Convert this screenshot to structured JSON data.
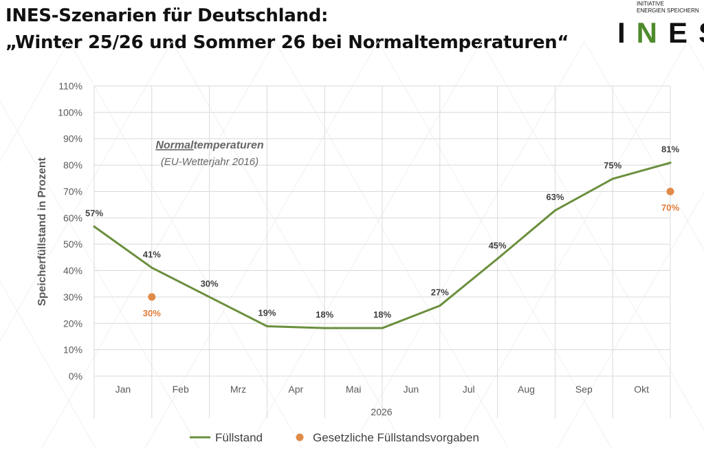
{
  "header": {
    "title_line1": "INES-Szenarien für Deutschland:",
    "title_line2": "„Winter 25/26 und Sommer 26 bei Normaltemperaturen“"
  },
  "logo": {
    "tagline_line1": "INITIATIVE",
    "tagline_line2": "ENERGIEN SPEICHERN",
    "wordmark_left": "I",
    "wordmark_accent": "N",
    "wordmark_right": "ES"
  },
  "colors": {
    "line": "#6a8f3d",
    "marker": "#e08a48",
    "grid": "#d9d9d9"
  },
  "chart_data": {
    "type": "line",
    "title": "",
    "annotation": {
      "title_underlined": "Normal",
      "title_rest": "temperaturen",
      "subtitle": "(EU-Wetterjahr 2016)"
    },
    "xlabel": "2026",
    "ylabel": "Speicherfüllstand in Prozent",
    "categories": [
      "Jan",
      "Feb",
      "Mrz",
      "Apr",
      "Mai",
      "Jun",
      "Jul",
      "Aug",
      "Sep",
      "Okt"
    ],
    "ylim": [
      0,
      110
    ],
    "yticks": [
      "0%",
      "10%",
      "20%",
      "30%",
      "40%",
      "50%",
      "60%",
      "70%",
      "80%",
      "90%",
      "100%",
      "110%"
    ],
    "series": [
      {
        "name": "Füllstand",
        "type": "line",
        "x": [
          0,
          1,
          2,
          3,
          4,
          5,
          6,
          7,
          8,
          9,
          10
        ],
        "values": [
          56.7,
          41.1,
          30.0,
          18.9,
          18.2,
          18.2,
          26.7,
          44.5,
          62.8,
          74.8,
          80.9
        ],
        "labels": [
          "57%",
          "41%",
          "30%",
          "19%",
          "18%",
          "18%",
          "27%",
          "45%",
          "63%",
          "75%",
          "81%"
        ]
      },
      {
        "name": "Gesetzliche Füllstandsvorgaben",
        "type": "scatter",
        "x": [
          1,
          10
        ],
        "values": [
          30,
          70
        ],
        "labels": [
          "30%",
          "70%"
        ]
      }
    ],
    "legend": [
      "Füllstand",
      "Gesetzliche Füllstandsvorgaben"
    ],
    "legend_position": "bottom",
    "grid": true
  }
}
